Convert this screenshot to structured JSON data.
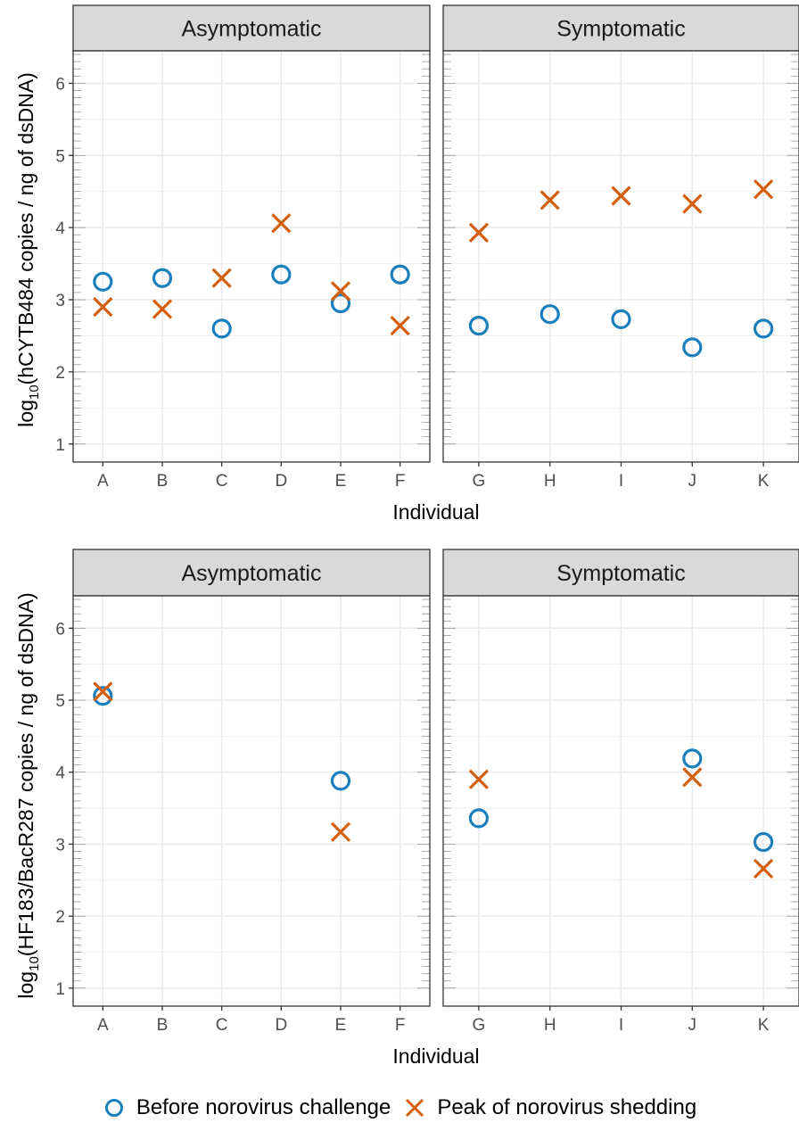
{
  "chart_data": [
    {
      "type": "scatter",
      "ylabel_prefix": "log",
      "ylabel_subscript": "10",
      "ylabel_rest": "(hCYTB484 copies / ng of dsDNA)",
      "xlabel": "Individual",
      "ylim": [
        0.75,
        6.45
      ],
      "yticks": [
        "1",
        "2",
        "3",
        "4",
        "5",
        "6"
      ],
      "grid": true,
      "facets": [
        {
          "title": "Asymptomatic",
          "categories": [
            "A",
            "B",
            "C",
            "D",
            "E",
            "F"
          ],
          "series": [
            {
              "key": "before",
              "values": [
                3.25,
                3.3,
                2.6,
                3.35,
                2.95,
                3.35
              ]
            },
            {
              "key": "peak",
              "values": [
                2.9,
                2.87,
                3.3,
                4.06,
                3.12,
                2.64
              ]
            }
          ]
        },
        {
          "title": "Symptomatic",
          "categories": [
            "G",
            "H",
            "I",
            "J",
            "K"
          ],
          "series": [
            {
              "key": "before",
              "values": [
                2.64,
                2.8,
                2.73,
                2.34,
                2.6
              ]
            },
            {
              "key": "peak",
              "values": [
                3.93,
                4.38,
                4.44,
                4.33,
                4.53
              ]
            }
          ]
        }
      ]
    },
    {
      "type": "scatter",
      "ylabel_prefix": "log",
      "ylabel_subscript": "10",
      "ylabel_rest": "(HF183/BacR287 copies / ng of dsDNA)",
      "xlabel": "Individual",
      "ylim": [
        0.75,
        6.45
      ],
      "yticks": [
        "1",
        "2",
        "3",
        "4",
        "5",
        "6"
      ],
      "grid": true,
      "facets": [
        {
          "title": "Asymptomatic",
          "categories": [
            "A",
            "B",
            "C",
            "D",
            "E",
            "F"
          ],
          "series": [
            {
              "key": "before",
              "values": [
                5.06,
                null,
                null,
                null,
                3.88,
                null
              ]
            },
            {
              "key": "peak",
              "values": [
                5.12,
                null,
                null,
                null,
                3.17,
                null
              ]
            }
          ]
        },
        {
          "title": "Symptomatic",
          "categories": [
            "G",
            "H",
            "I",
            "J",
            "K"
          ],
          "series": [
            {
              "key": "before",
              "values": [
                3.36,
                null,
                null,
                4.19,
                3.03
              ]
            },
            {
              "key": "peak",
              "values": [
                3.9,
                null,
                null,
                3.93,
                2.66
              ]
            }
          ]
        }
      ]
    }
  ],
  "legend": {
    "items": [
      {
        "key": "before",
        "label": "Before norovirus challenge",
        "marker": "open-circle",
        "color": "#1a7fbc"
      },
      {
        "key": "peak",
        "label": "Peak of norovirus shedding",
        "marker": "x-cross",
        "color": "#d35f0d"
      }
    ],
    "placement": "bottom"
  },
  "colors": {
    "before": "#1a7fbc",
    "peak": "#d35f0d",
    "strip_fill": "#d9d9d9",
    "grid_major": "#ebebeb",
    "panel_border": "#333333"
  }
}
